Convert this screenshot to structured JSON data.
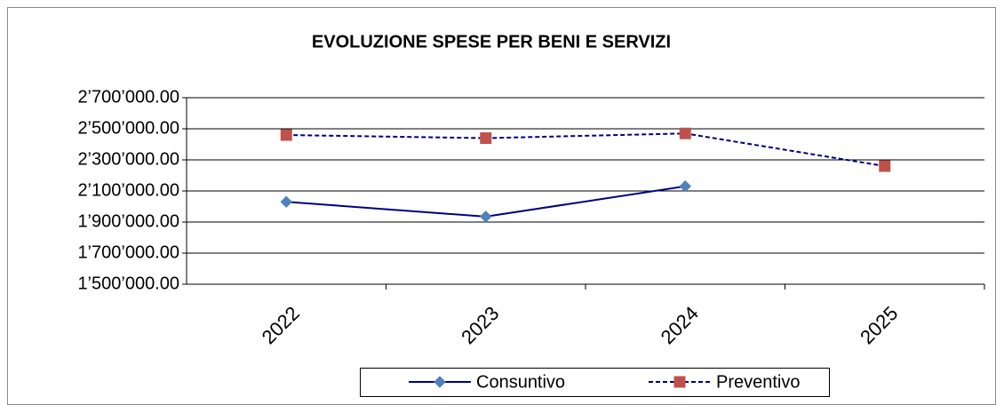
{
  "chart_data": {
    "type": "line",
    "title": "EVOLUZIONE SPESE PER BENI E SERVIZI",
    "categories": [
      "2022",
      "2023",
      "2024",
      "2025"
    ],
    "series": [
      {
        "name": "Consuntivo",
        "color": "#000080",
        "marker_color": "#4f81bd",
        "marker": "diamond",
        "dash": false,
        "values": [
          2030000,
          1935000,
          2130000,
          null
        ]
      },
      {
        "name": "Preventivo",
        "color": "#000080",
        "marker_color": "#c0504d",
        "marker": "square",
        "dash": true,
        "values": [
          2460000,
          2440000,
          2470000,
          2260000
        ]
      }
    ],
    "ylim": [
      1500000,
      2700000
    ],
    "yticks": [
      {
        "value": 1500000,
        "label": "1’500’000.00"
      },
      {
        "value": 1700000,
        "label": "1’700’000.00"
      },
      {
        "value": 1900000,
        "label": "1’900’000.00"
      },
      {
        "value": 2100000,
        "label": "2’100’000.00"
      },
      {
        "value": 2300000,
        "label": "2’300’000.00"
      },
      {
        "value": 2500000,
        "label": "2’500’000.00"
      },
      {
        "value": 2700000,
        "label": "2’700’000.00"
      }
    ],
    "grid": true,
    "legend": "bottom"
  }
}
